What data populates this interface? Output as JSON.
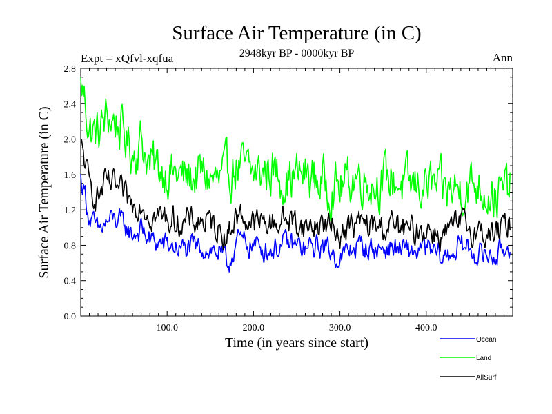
{
  "chart_data": {
    "type": "line",
    "title": "Surface Air Temperature (in C)",
    "subtitle": "2948kyr BP - 0000kyr BP",
    "expt_label": "Expt = xQfvl-xqfua",
    "season_label": "Ann",
    "xlabel": "Time (in years since start)",
    "ylabel": "Surface Air Temperature (in C)",
    "xlim": [
      0,
      500
    ],
    "ylim": [
      0.0,
      2.8
    ],
    "xticks": [
      100,
      200,
      300,
      400
    ],
    "xtick_labels": [
      "100.0",
      "200.0",
      "300.0",
      "400.0"
    ],
    "yticks": [
      0.0,
      0.4,
      0.8,
      1.2,
      1.6,
      2.0,
      2.4,
      2.8
    ],
    "ytick_labels": [
      "0.0",
      "0.4",
      "0.8",
      "1.2",
      "1.6",
      "2.0",
      "2.4",
      "2.8"
    ],
    "grid": false,
    "legend": "bottom-right",
    "series": [
      {
        "name": "Ocean",
        "color": "#0000ff",
        "x": [
          0,
          5,
          10,
          20,
          30,
          40,
          50,
          60,
          70,
          80,
          100,
          120,
          140,
          160,
          170,
          180,
          200,
          220,
          240,
          260,
          280,
          300,
          320,
          340,
          360,
          380,
          400,
          420,
          440,
          460,
          480,
          497
        ],
        "values": [
          1.55,
          1.4,
          1.1,
          0.95,
          1.05,
          1.1,
          1.02,
          0.92,
          0.98,
          0.85,
          0.8,
          0.75,
          0.78,
          0.72,
          0.55,
          0.85,
          0.8,
          0.75,
          0.82,
          0.75,
          0.8,
          0.65,
          0.8,
          0.75,
          0.78,
          0.72,
          0.75,
          0.65,
          0.8,
          0.7,
          0.68,
          0.8
        ]
      },
      {
        "name": "Land",
        "color": "#00ff00",
        "x": [
          0,
          5,
          10,
          20,
          30,
          40,
          50,
          60,
          70,
          80,
          100,
          120,
          140,
          160,
          180,
          200,
          220,
          240,
          260,
          280,
          300,
          320,
          340,
          360,
          380,
          400,
          420,
          440,
          460,
          480,
          497
        ],
        "values": [
          2.6,
          2.45,
          2.1,
          2.05,
          2.25,
          2.2,
          2.05,
          1.85,
          2.0,
          1.7,
          1.65,
          1.55,
          1.6,
          1.5,
          1.7,
          1.6,
          1.65,
          1.55,
          1.6,
          1.5,
          1.45,
          1.6,
          1.5,
          1.55,
          1.45,
          1.5,
          1.4,
          1.45,
          1.5,
          1.35,
          1.45
        ]
      },
      {
        "name": "AllSurf",
        "color": "#000000",
        "x": [
          0,
          5,
          10,
          20,
          30,
          40,
          50,
          60,
          70,
          80,
          100,
          120,
          140,
          160,
          170,
          180,
          200,
          220,
          240,
          260,
          280,
          300,
          320,
          340,
          360,
          380,
          400,
          420,
          440,
          460,
          480,
          497
        ],
        "values": [
          1.9,
          1.75,
          1.45,
          1.35,
          1.5,
          1.45,
          1.35,
          1.25,
          1.3,
          1.15,
          1.1,
          1.05,
          1.08,
          1.0,
          0.9,
          1.15,
          1.05,
          1.05,
          1.1,
          1.0,
          1.05,
          0.95,
          1.05,
          1.0,
          1.02,
          0.95,
          1.0,
          0.9,
          1.05,
          0.95,
          0.92,
          1.05
        ]
      }
    ]
  }
}
